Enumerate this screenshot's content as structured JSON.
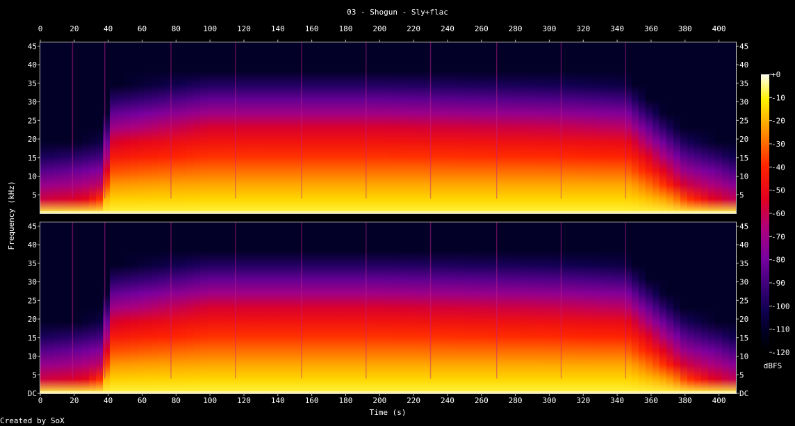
{
  "title": "03 - Shogun - Sly+flac",
  "footer": "Created by SoX",
  "chart_data": {
    "type": "heatmap",
    "subtype": "spectrogram",
    "title": "03 - Shogun - Sly+flac",
    "xlabel": "Time (s)",
    "ylabel": "Frequency (kHz)",
    "xlim": [
      0,
      410
    ],
    "ylim": [
      0,
      46
    ],
    "x_ticks": [
      0,
      20,
      40,
      60,
      80,
      100,
      120,
      140,
      160,
      180,
      200,
      220,
      240,
      260,
      280,
      300,
      320,
      340,
      360,
      380,
      400
    ],
    "y_ticks": [
      0,
      5,
      10,
      15,
      20,
      25,
      30,
      35,
      40,
      45
    ],
    "y_tick_labels": [
      "DC",
      "5",
      "10",
      "15",
      "20",
      "25",
      "30",
      "35",
      "40",
      "45"
    ],
    "channels": 2,
    "colorbar": {
      "label": "dBFS",
      "range": [
        -120,
        0
      ],
      "ticks": [
        0,
        -10,
        -20,
        -30,
        -40,
        -50,
        -60,
        -70,
        -80,
        -90,
        -100,
        -110,
        -120
      ],
      "tick_labels": [
        "+0",
        "-10",
        "-20",
        "-30",
        "-40",
        "-50",
        "-60",
        "-70",
        "-80",
        "-90",
        "-100",
        "-110",
        "-120"
      ],
      "colors": [
        "#fffff4",
        "#fff100",
        "#ff9600",
        "#ff2300",
        "#e00020",
        "#b0007a",
        "#7800a0",
        "#3c007a",
        "#100050",
        "#000020",
        "#000000"
      ]
    },
    "energy_profile": {
      "time_s": [
        0,
        20,
        38,
        40,
        100,
        200,
        300,
        345,
        360,
        380,
        400,
        410
      ],
      "red_band_top_khz": [
        2,
        3,
        5,
        18,
        22,
        22,
        21,
        20,
        14,
        6,
        3,
        1
      ],
      "yellow_band_top_khz": [
        1.5,
        2,
        3,
        7,
        8,
        8,
        8,
        8,
        5,
        2,
        1,
        0.5
      ]
    },
    "transients_s": [
      19,
      38,
      77,
      115,
      154,
      192,
      230,
      269,
      307,
      345
    ]
  }
}
